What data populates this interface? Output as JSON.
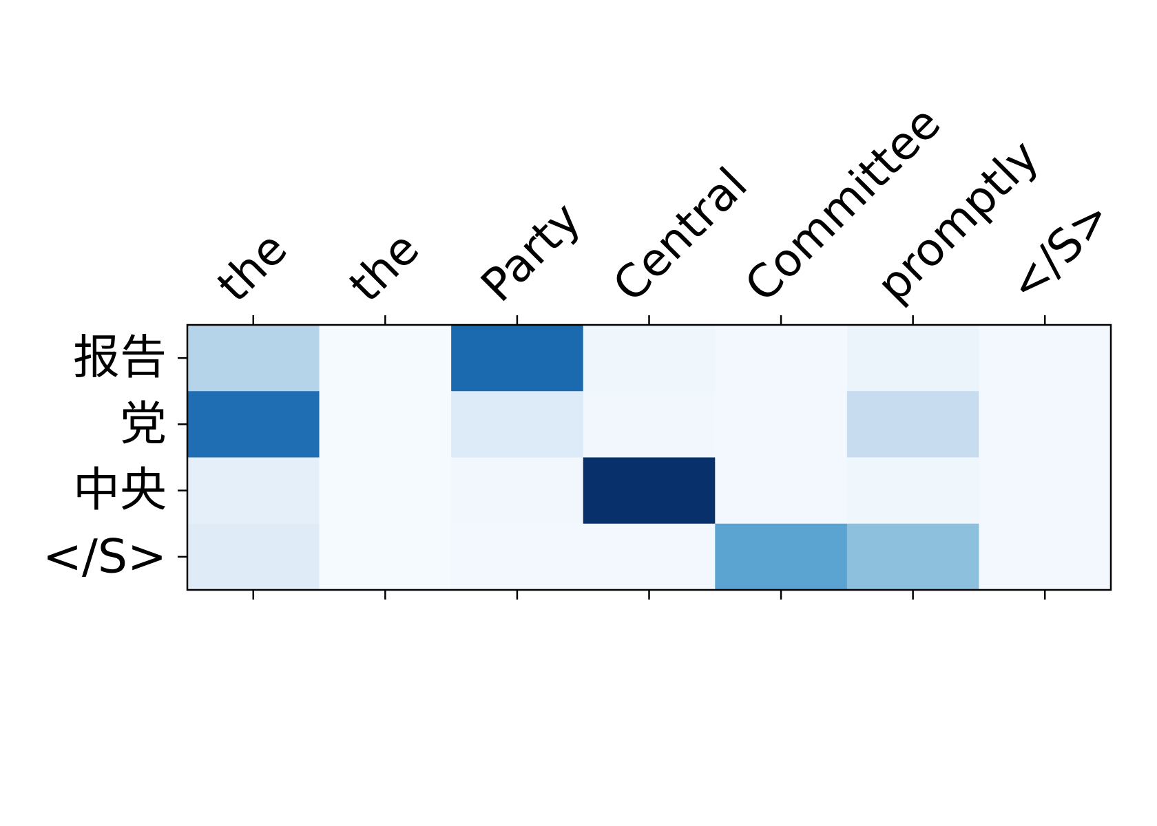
{
  "chart_data": {
    "type": "heatmap",
    "title": "",
    "xlabel": "",
    "ylabel": "",
    "x_labels": [
      "the",
      "the",
      "Party",
      "Central",
      "Committee",
      "promptly",
      "</S>"
    ],
    "y_labels": [
      "报告",
      "党",
      "中央",
      "</S>"
    ],
    "values": [
      [
        0.3,
        0.01,
        0.78,
        0.04,
        0.02,
        0.06,
        0.02
      ],
      [
        0.76,
        0.01,
        0.13,
        0.03,
        0.02,
        0.24,
        0.02
      ],
      [
        0.09,
        0.01,
        0.03,
        1.0,
        0.02,
        0.04,
        0.02
      ],
      [
        0.12,
        0.01,
        0.02,
        0.02,
        0.55,
        0.42,
        0.02
      ]
    ],
    "value_range": [
      0,
      1
    ],
    "colormap": "Blues",
    "grid": false,
    "legend": "none"
  }
}
